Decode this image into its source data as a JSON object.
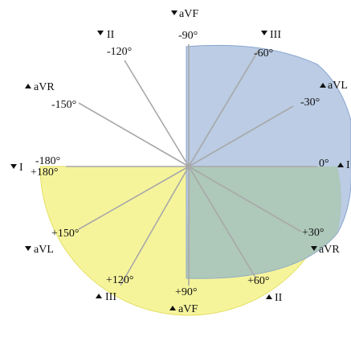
{
  "colors": {
    "quadrant_fill": "#b7c9e3",
    "quadrant_stroke": "#8aa5cf",
    "half_fill": "#f6f49b",
    "half_stroke": "#e3df63",
    "axis": "#a8a8a8",
    "text": "#111111"
  },
  "degrees": {
    "minus90": "-90°",
    "minus60": "-60°",
    "minus30": "-30°",
    "zero": "0°",
    "plus30": "+30°",
    "plus60": "+60°",
    "plus90": "+90°",
    "plus120": "+120°",
    "plus150": "+150°",
    "plus180": "+180°",
    "minus180": "-180°",
    "minus150": "-150°",
    "minus120": "-120°"
  },
  "leads": {
    "top_avf": "aVF",
    "top_right_iii": "III",
    "right_avl": "aVL",
    "right_i": "I",
    "bottom_right_avr": "aVR",
    "bottom_ii": "II",
    "bottom_avf": "aVF",
    "bottom_iii": "III",
    "left_avl": "aVL",
    "left_i": "I",
    "upper_left_avr": "aVR",
    "top_left_ii": "II"
  }
}
